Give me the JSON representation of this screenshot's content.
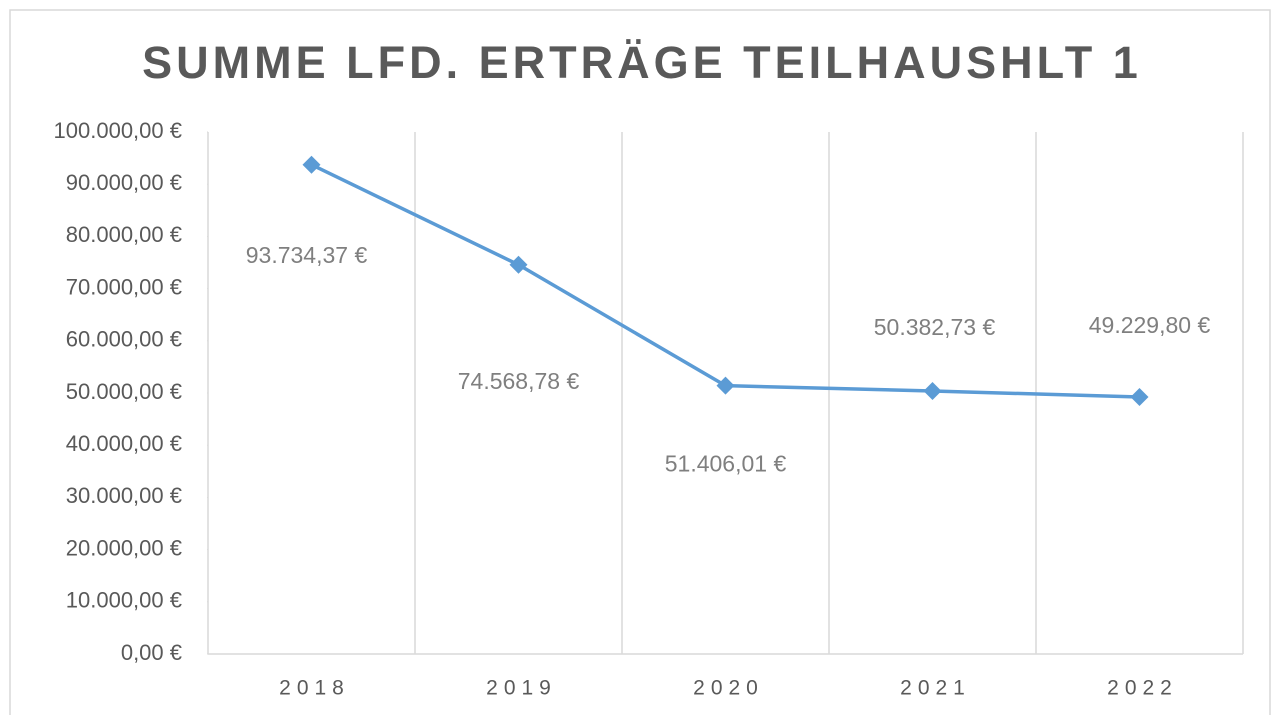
{
  "chart_data": {
    "type": "line",
    "title": "SUMME LFD. ERTRÄGE TEILHAUSHLT 1",
    "categories": [
      "2018",
      "2019",
      "2020",
      "2021",
      "2022"
    ],
    "values": [
      93734.37,
      74568.78,
      51406.01,
      50382.73,
      49229.8
    ],
    "value_labels": [
      "93.734,37 €",
      "74.568,78 €",
      "51.406,01 €",
      "50.382,73 €",
      "49.229,80 €"
    ],
    "color": "#5b9bd5",
    "ylim": [
      0,
      100000
    ],
    "yticks": [
      {
        "value": 0,
        "label": "0,00 €"
      },
      {
        "value": 10000,
        "label": "10.000,00 €"
      },
      {
        "value": 20000,
        "label": "20.000,00 €"
      },
      {
        "value": 30000,
        "label": "30.000,00 €"
      },
      {
        "value": 40000,
        "label": "40.000,00 €"
      },
      {
        "value": 50000,
        "label": "50.000,00 €"
      },
      {
        "value": 60000,
        "label": "60.000,00 €"
      },
      {
        "value": 70000,
        "label": "70.000,00 €"
      },
      {
        "value": 80000,
        "label": "80.000,00 €"
      },
      {
        "value": 90000,
        "label": "90.000,00 €"
      },
      {
        "value": 100000,
        "label": "100.000,00 €"
      }
    ],
    "grid": true
  }
}
